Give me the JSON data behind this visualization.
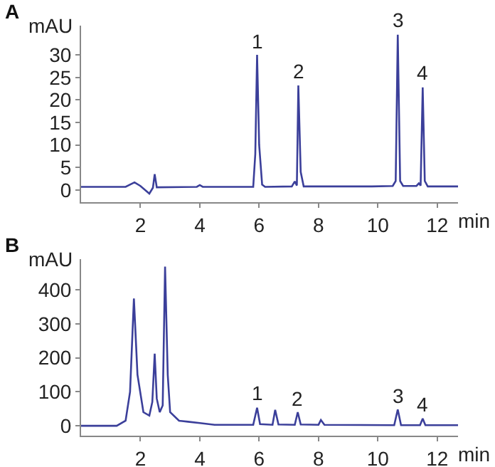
{
  "chart_data": [
    {
      "type": "line",
      "title": "A",
      "xlabel": "min",
      "ylabel": "mAU",
      "x": [
        0,
        1.5,
        1.8,
        2.0,
        2.3,
        2.42,
        2.48,
        2.55,
        3.9,
        4.0,
        4.1,
        5.8,
        5.87,
        5.93,
        6.0,
        6.1,
        6.2,
        7.1,
        7.2,
        7.27,
        7.32,
        7.4,
        7.5,
        9.8,
        10.5,
        10.6,
        10.67,
        10.75,
        10.85,
        11.3,
        11.38,
        11.44,
        11.51,
        11.58,
        11.68,
        12.7
      ],
      "series": [
        {
          "color": "#3b3f9a",
          "values": [
            0.7,
            0.7,
            1.7,
            0.9,
            -0.8,
            0.5,
            3.5,
            0.6,
            0.7,
            1.1,
            0.7,
            0.7,
            8,
            30,
            10,
            1.2,
            0.7,
            0.8,
            1.9,
            1.0,
            23.2,
            4,
            0.8,
            0.8,
            0.9,
            2,
            34.5,
            2,
            0.9,
            0.9,
            1.5,
            1.0,
            22.8,
            2,
            0.8,
            0.8
          ]
        }
      ],
      "xlim": [
        0,
        12.7
      ],
      "ylim": [
        -2.7,
        36.5
      ],
      "xticks": [
        2,
        4,
        6,
        8,
        10,
        12
      ],
      "yticks": [
        0,
        5,
        10,
        15,
        20,
        25,
        30
      ],
      "annotations": [
        {
          "text": "1",
          "x": 5.93,
          "y": 30
        },
        {
          "text": "2",
          "x": 7.32,
          "y": 23.2
        },
        {
          "text": "3",
          "x": 10.67,
          "y": 34.5
        },
        {
          "text": "4",
          "x": 11.51,
          "y": 22.8
        }
      ]
    },
    {
      "type": "line",
      "title": "B",
      "xlabel": "min",
      "ylabel": "mAU",
      "x": [
        0,
        1.2,
        1.5,
        1.65,
        1.78,
        1.9,
        2.1,
        2.3,
        2.4,
        2.48,
        2.55,
        2.65,
        2.75,
        2.83,
        2.92,
        3.0,
        3.3,
        3.6,
        4.0,
        4.5,
        5.8,
        5.93,
        6.03,
        6.45,
        6.54,
        6.65,
        7.2,
        7.3,
        7.4,
        8.0,
        8.08,
        8.2,
        10.55,
        10.67,
        10.78,
        11.42,
        11.51,
        11.6,
        12.7
      ],
      "series": [
        {
          "color": "#3b3f9a",
          "values": [
            0,
            0,
            15,
            100,
            374,
            150,
            40,
            30,
            70,
            212,
            80,
            40,
            60,
            468,
            150,
            40,
            15,
            12,
            8,
            3,
            3,
            53,
            5,
            3,
            47,
            4,
            3,
            40,
            4,
            3,
            17,
            3,
            2,
            48,
            2,
            2,
            21,
            2,
            2
          ]
        }
      ],
      "xlim": [
        0,
        12.7
      ],
      "ylim": [
        -29,
        490
      ],
      "xticks": [
        2,
        4,
        6,
        8,
        10,
        12
      ],
      "yticks": [
        0,
        100,
        200,
        300,
        400
      ],
      "annotations": [
        {
          "text": "1",
          "x": 5.93,
          "y": 53
        },
        {
          "text": "2",
          "x": 7.3,
          "y": 40
        },
        {
          "text": "3",
          "x": 10.67,
          "y": 48
        },
        {
          "text": "4",
          "x": 11.51,
          "y": 21
        }
      ]
    }
  ]
}
